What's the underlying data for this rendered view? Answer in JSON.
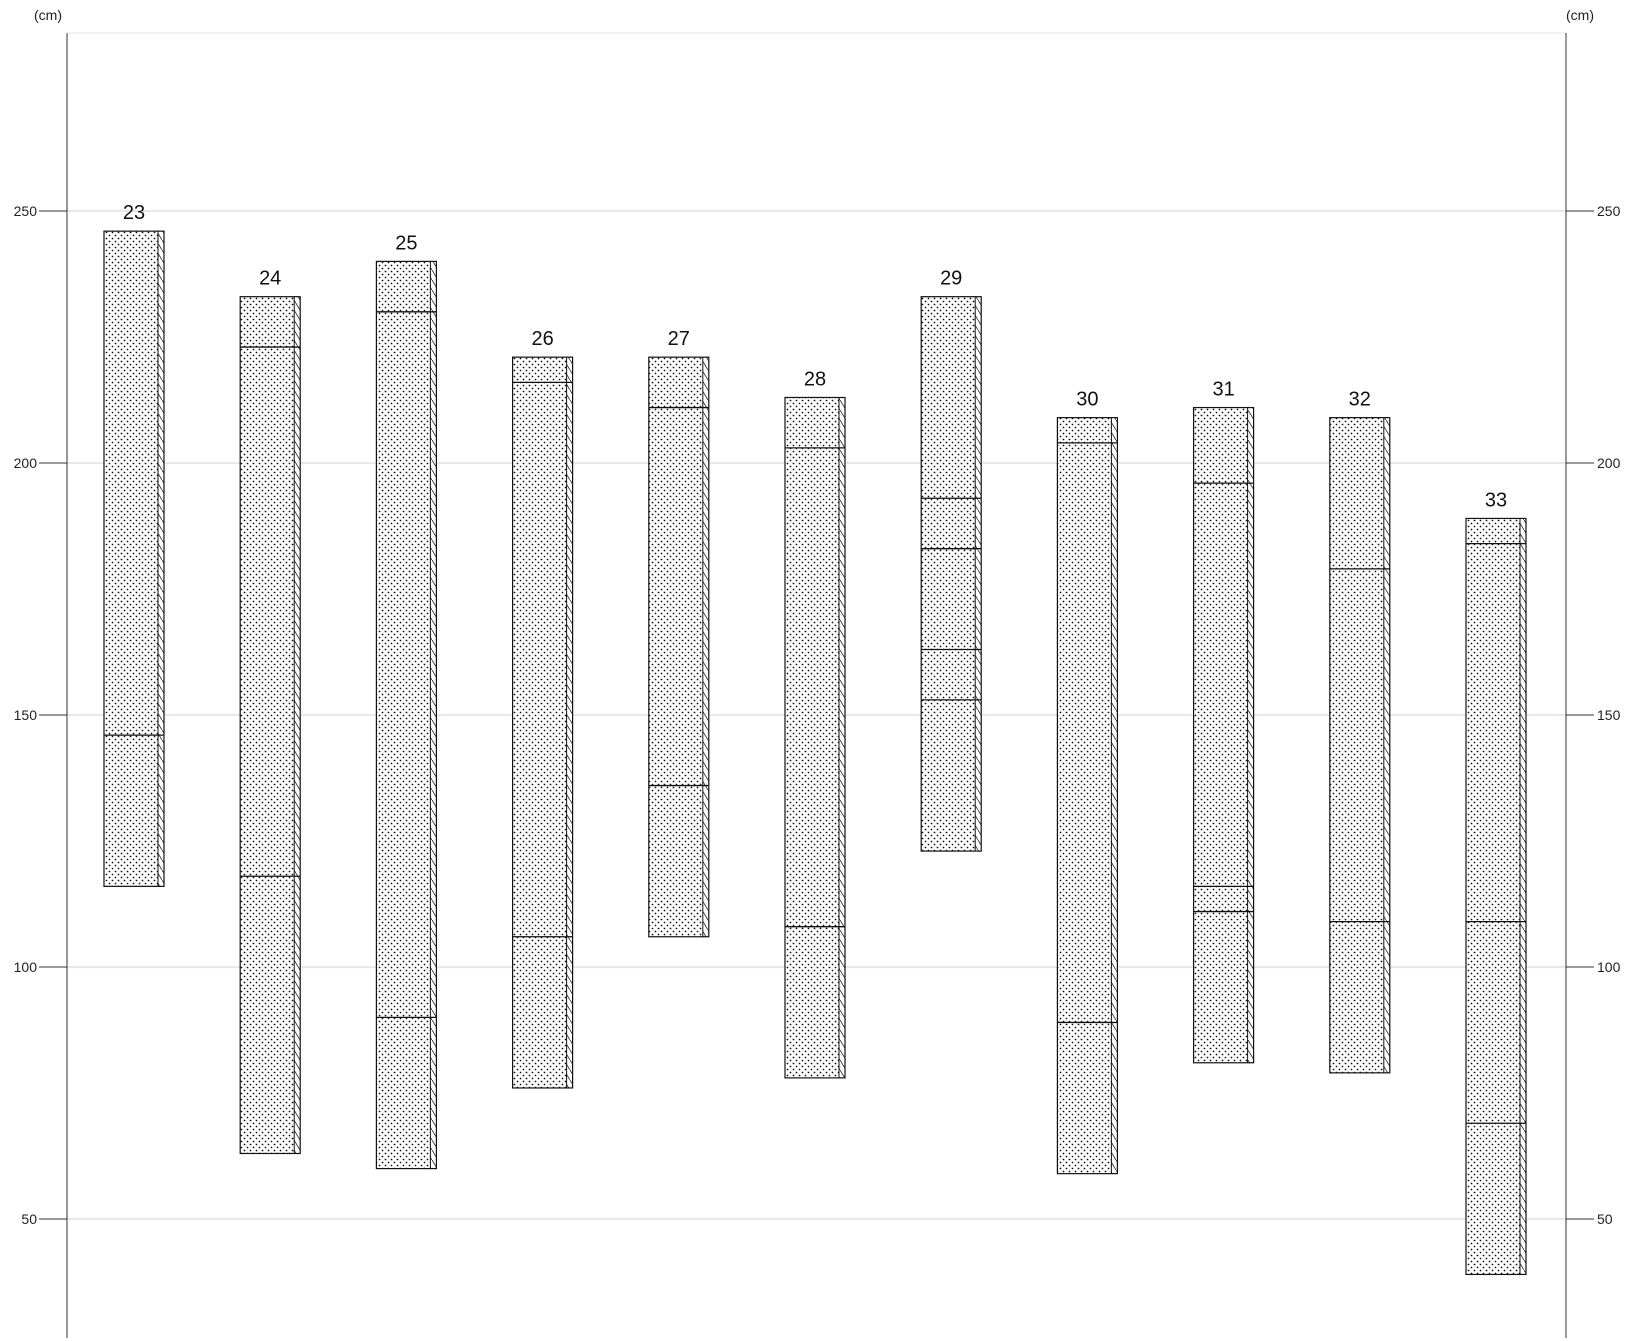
{
  "chart_data": {
    "type": "core_log",
    "unit_label": "(cm)",
    "y_axis": {
      "min": 28,
      "max": 283,
      "ticks": [
        50,
        100,
        150,
        200,
        250
      ]
    },
    "grid": true,
    "gridline_color": "#d8d8f0",
    "fill_pattern": "dotted",
    "columns": [
      {
        "label": "23",
        "top": 246,
        "bottom": 116,
        "boundaries": [
          146
        ]
      },
      {
        "label": "24",
        "top": 233,
        "bottom": 63,
        "boundaries": [
          223,
          118
        ]
      },
      {
        "label": "25",
        "top": 240,
        "bottom": 60,
        "boundaries": [
          230,
          90
        ]
      },
      {
        "label": "26",
        "top": 221,
        "bottom": 76,
        "boundaries": [
          216,
          106
        ]
      },
      {
        "label": "27",
        "top": 221,
        "bottom": 106,
        "boundaries": [
          211,
          136
        ]
      },
      {
        "label": "28",
        "top": 213,
        "bottom": 78,
        "boundaries": [
          203,
          108
        ]
      },
      {
        "label": "29",
        "top": 233,
        "bottom": 123,
        "boundaries": [
          193,
          183,
          163,
          153
        ]
      },
      {
        "label": "30",
        "top": 209,
        "bottom": 59,
        "boundaries": [
          204,
          89
        ]
      },
      {
        "label": "31",
        "top": 211,
        "bottom": 81,
        "boundaries": [
          196,
          116,
          111
        ]
      },
      {
        "label": "32",
        "top": 209,
        "bottom": 79,
        "boundaries": [
          179,
          109
        ]
      },
      {
        "label": "33",
        "top": 189,
        "bottom": 39,
        "boundaries": [
          184,
          109,
          69
        ]
      }
    ]
  }
}
